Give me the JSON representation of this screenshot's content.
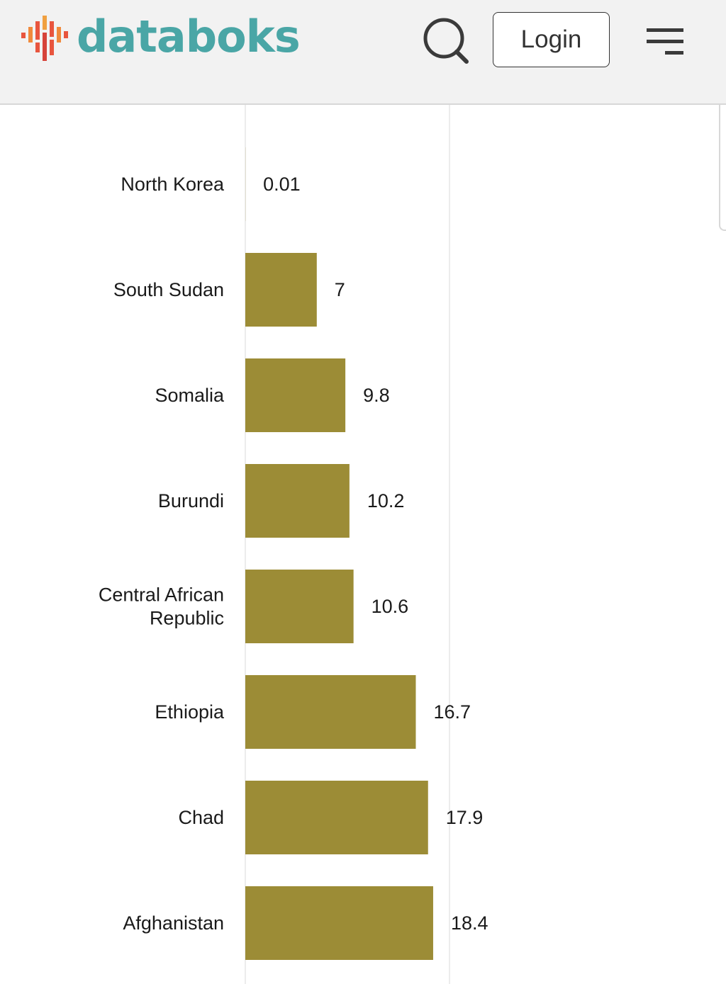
{
  "header": {
    "brand": "databoks",
    "login_label": "Login",
    "icons": {
      "logo": "databoks-logo-icon",
      "search": "search-icon",
      "menu": "hamburger-menu-icon"
    },
    "colors": {
      "brand_text": "#4aa6a6",
      "logo_bars": [
        "#e74c3c",
        "#f0a040",
        "#c0392b"
      ]
    }
  },
  "chart_data": {
    "type": "bar",
    "orientation": "horizontal",
    "categories": [
      [
        "North Korea"
      ],
      [
        "South Sudan"
      ],
      [
        "Somalia"
      ],
      [
        "Burundi"
      ],
      [
        "Central African",
        "Republic"
      ],
      [
        "Ethiopia"
      ],
      [
        "Chad"
      ],
      [
        "Afghanistan"
      ]
    ],
    "values": [
      0.01,
      7,
      9.8,
      10.2,
      10.6,
      16.7,
      17.9,
      18.4
    ],
    "value_labels": [
      "0.01",
      "7",
      "9.8",
      "10.2",
      "10.6",
      "16.7",
      "17.9",
      "18.4"
    ],
    "xlim": [
      0,
      20
    ],
    "bar_color": "#9c8c36",
    "gridline_at": 20,
    "grid": true
  }
}
